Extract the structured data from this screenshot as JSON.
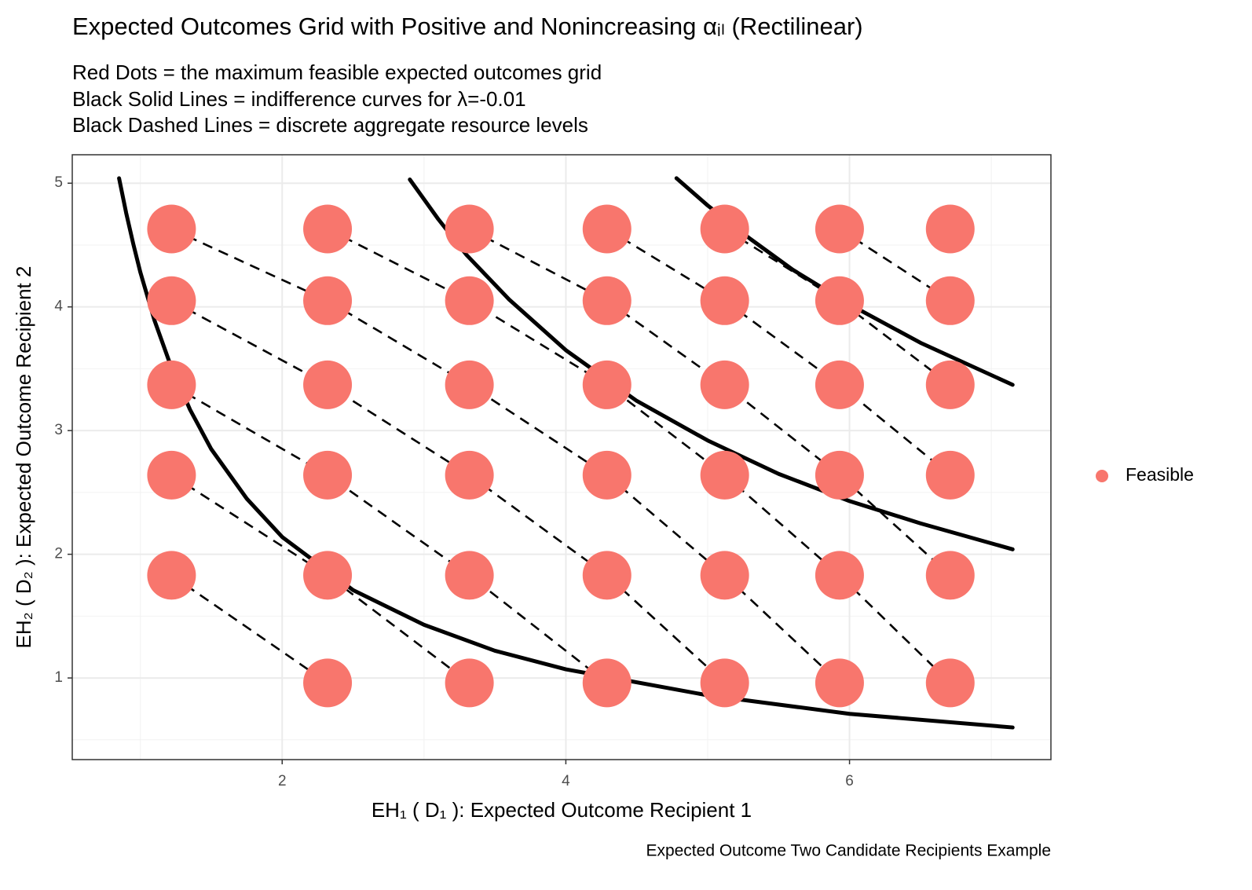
{
  "chart_data": {
    "type": "scatter",
    "title": "Expected Outcomes Grid with Positive and Nonincreasing αᵢₗ (Rectilinear)",
    "subtitle": [
      "Red Dots = the maximum feasible expected outcomes grid",
      "Black Solid Lines = indifference curves for λ=-0.01",
      "Black Dashed Lines = discrete aggregate resource levels"
    ],
    "caption": "Expected Outcome Two Candidate Recipients Example",
    "x_label": "EH₁ ( D₁ ):  Expected Outcome Recipient 1",
    "y_label": "EH₂ ( D₂ ):  Expected Outcome Recipient 2",
    "xlim": [
      0.52,
      7.42
    ],
    "ylim": [
      0.34,
      5.23
    ],
    "xticks": [
      2,
      4,
      6
    ],
    "yticks": [
      1,
      2,
      3,
      4,
      5
    ],
    "x_minor_ticks": [
      1,
      3,
      5,
      7
    ],
    "y_minor_ticks": [
      0.5,
      1.5,
      2.5,
      3.5,
      4.5
    ],
    "grid": true,
    "legend_position": "right",
    "series": [
      {
        "name": "Feasible",
        "color": "#F8766D",
        "x": [
          1.22,
          1.22,
          1.22,
          1.22,
          1.22,
          2.32,
          2.32,
          2.32,
          2.32,
          2.32,
          2.32,
          3.32,
          3.32,
          3.32,
          3.32,
          3.32,
          3.32,
          4.29,
          4.29,
          4.29,
          4.29,
          4.29,
          4.29,
          5.12,
          5.12,
          5.12,
          5.12,
          5.12,
          5.12,
          5.93,
          5.93,
          5.93,
          5.93,
          5.93,
          5.93,
          6.71,
          6.71,
          6.71,
          6.71,
          6.71,
          6.71
        ],
        "y": [
          4.63,
          4.05,
          3.37,
          2.64,
          1.83,
          4.63,
          4.05,
          3.37,
          2.64,
          1.83,
          0.96,
          4.63,
          4.05,
          3.37,
          2.64,
          1.83,
          0.96,
          4.63,
          4.05,
          3.37,
          2.64,
          1.83,
          0.96,
          4.63,
          4.05,
          3.37,
          2.64,
          1.83,
          0.96,
          4.63,
          4.05,
          3.37,
          2.64,
          1.83,
          0.96,
          4.63,
          4.05,
          3.37,
          2.64,
          1.83,
          0.96
        ]
      }
    ],
    "curves": [
      {
        "x": [
          0.85,
          0.9,
          0.95,
          1,
          1.1,
          1.2,
          1.35,
          1.5,
          1.75,
          2,
          2.5,
          3,
          3.5,
          4,
          5,
          6,
          7.15
        ],
        "y": [
          5.04,
          4.76,
          4.51,
          4.28,
          3.89,
          3.57,
          3.17,
          2.85,
          2.45,
          2.14,
          1.71,
          1.43,
          1.22,
          1.07,
          0.86,
          0.71,
          0.6
        ]
      },
      {
        "x": [
          2.9,
          3.1,
          3.3,
          3.6,
          4,
          4.5,
          5,
          5.5,
          6,
          6.5,
          7.15
        ],
        "y": [
          5.03,
          4.71,
          4.42,
          4.06,
          3.65,
          3.24,
          2.92,
          2.65,
          2.43,
          2.25,
          2.04
        ]
      },
      {
        "x": [
          4.78,
          5,
          5.3,
          5.6,
          6,
          6.5,
          7.15
        ],
        "y": [
          5.04,
          4.82,
          4.55,
          4.3,
          4.02,
          3.71,
          3.37
        ]
      }
    ],
    "dashed_lines": [
      {
        "x": [
          1.22,
          2.32,
          3.32,
          4.29,
          5.12,
          5.93
        ],
        "y": [
          4.63,
          4.05,
          3.37,
          2.64,
          1.83,
          0.96
        ]
      },
      {
        "x": [
          1.22,
          2.32,
          3.32,
          4.29,
          5.12
        ],
        "y": [
          4.05,
          3.37,
          2.64,
          1.83,
          0.96
        ]
      },
      {
        "x": [
          1.22,
          2.32,
          3.32,
          4.29
        ],
        "y": [
          3.37,
          2.64,
          1.83,
          0.96
        ]
      },
      {
        "x": [
          1.22,
          2.32,
          3.32
        ],
        "y": [
          2.64,
          1.83,
          0.96
        ]
      },
      {
        "x": [
          1.22,
          2.32
        ],
        "y": [
          1.83,
          0.96
        ]
      },
      {
        "x": [
          2.32,
          3.32,
          4.29,
          5.12,
          5.93,
          6.71
        ],
        "y": [
          4.63,
          4.05,
          3.37,
          2.64,
          1.83,
          0.96
        ]
      },
      {
        "x": [
          3.32,
          4.29,
          5.12,
          5.93,
          6.71
        ],
        "y": [
          4.63,
          4.05,
          3.37,
          2.64,
          1.83
        ]
      },
      {
        "x": [
          4.29,
          5.12,
          5.93,
          6.71
        ],
        "y": [
          4.63,
          4.05,
          3.37,
          2.64
        ]
      },
      {
        "x": [
          5.12,
          5.93,
          6.71
        ],
        "y": [
          4.63,
          4.05,
          3.37
        ]
      },
      {
        "x": [
          5.93,
          6.71
        ],
        "y": [
          4.63,
          4.05
        ]
      }
    ]
  }
}
